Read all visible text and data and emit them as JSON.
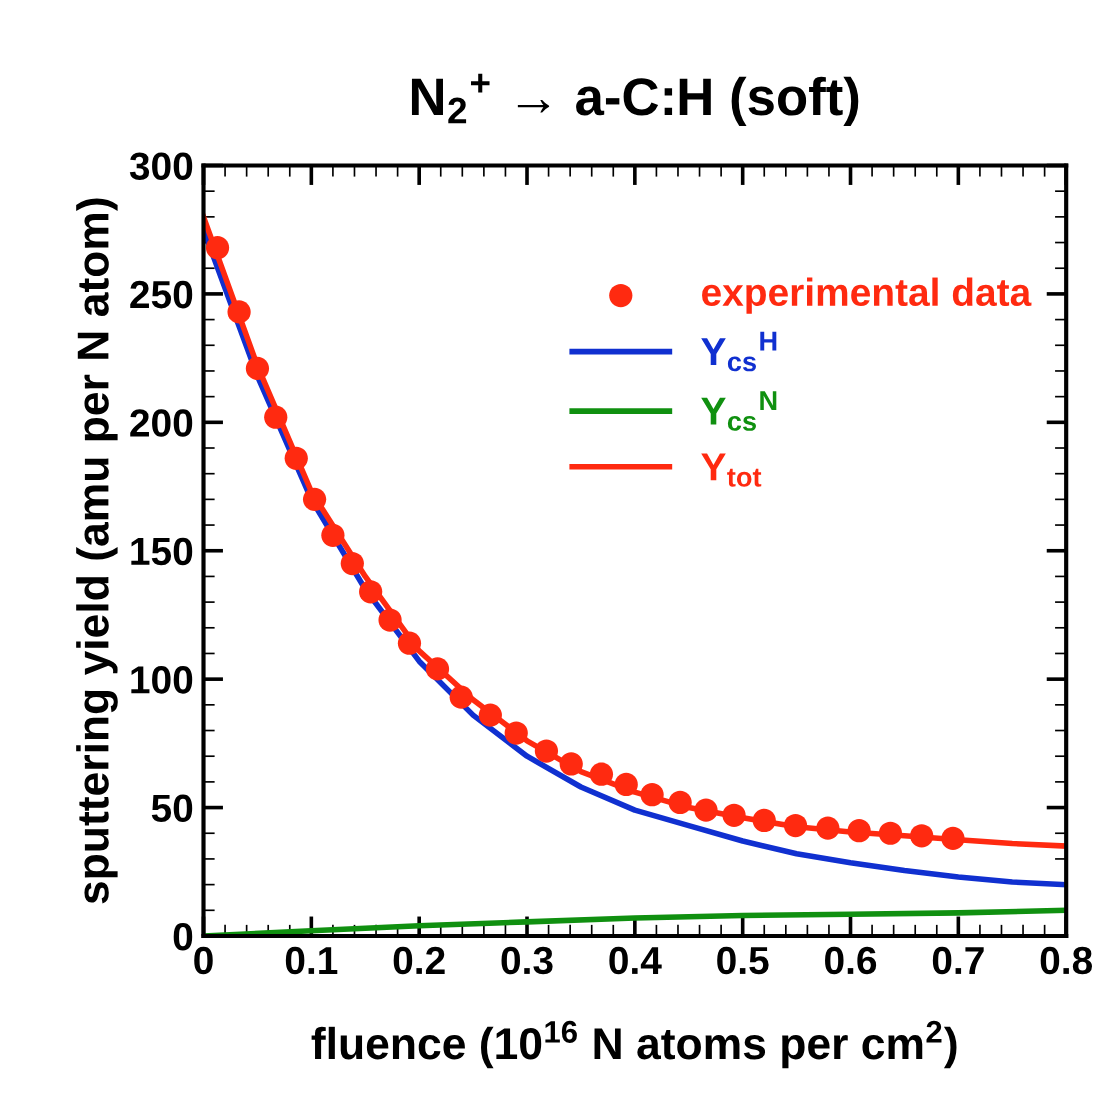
{
  "chart_data": {
    "type": "line",
    "title": "N$_{2}$$^{+}$ → a-C:H (soft)",
    "xlabel": "fluence (10$^{16}$ N atoms per cm$^{2}$)",
    "ylabel": "sputtering yield (amu per N atom)",
    "xlim": [
      0,
      0.8
    ],
    "xticks": [
      0,
      0.1,
      0.2,
      0.3,
      0.4,
      0.5,
      0.6,
      0.7,
      0.8
    ],
    "ylim": [
      0,
      300
    ],
    "yticks": [
      0,
      50,
      100,
      150,
      200,
      250,
      300
    ],
    "legend": "top right",
    "grid": false,
    "series": [
      {
        "name": "experimental data",
        "type": "scatter",
        "marker": "circle",
        "color": "#ff2a10",
        "x": [
          0.013,
          0.033,
          0.05,
          0.067,
          0.086,
          0.103,
          0.12,
          0.138,
          0.155,
          0.173,
          0.191,
          0.217,
          0.239,
          0.266,
          0.29,
          0.318,
          0.341,
          0.369,
          0.392,
          0.416,
          0.442,
          0.466,
          0.492,
          0.52,
          0.549,
          0.579,
          0.608,
          0.637,
          0.666,
          0.695
        ],
        "values": [
          268,
          243,
          221,
          202,
          186,
          170,
          156,
          145,
          134,
          123,
          114,
          104,
          93,
          86,
          79,
          72,
          67,
          63,
          59,
          55,
          52,
          49,
          47,
          45,
          43,
          42,
          41,
          40,
          39,
          38
        ]
      },
      {
        "name": "Y$_{cs}$$^{H}$",
        "color": "#1030d0",
        "x": [
          0,
          0.05,
          0.1,
          0.15,
          0.2,
          0.25,
          0.3,
          0.35,
          0.4,
          0.45,
          0.5,
          0.55,
          0.6,
          0.65,
          0.7,
          0.75,
          0.8
        ],
        "values": [
          275,
          218,
          170,
          135,
          107,
          86,
          70,
          58,
          49,
          43,
          37,
          32,
          28.5,
          25.5,
          23,
          21,
          20
        ]
      },
      {
        "name": "Y$_{cs}$$^{N}$",
        "color": "#109010",
        "x": [
          0,
          0.1,
          0.2,
          0.3,
          0.4,
          0.5,
          0.6,
          0.7,
          0.8
        ],
        "values": [
          0,
          2,
          4,
          5.5,
          7,
          8,
          8.5,
          9,
          10
        ]
      },
      {
        "name": "Y$_{tot}$",
        "color": "#ff2a10",
        "x": [
          0,
          0.05,
          0.1,
          0.15,
          0.2,
          0.25,
          0.3,
          0.35,
          0.4,
          0.45,
          0.5,
          0.55,
          0.6,
          0.65,
          0.7,
          0.75,
          0.8
        ],
        "values": [
          280,
          222,
          173,
          140,
          111,
          92,
          76,
          64,
          56,
          50,
          46,
          42.5,
          40.5,
          39,
          37.5,
          36,
          35
        ]
      }
    ]
  }
}
